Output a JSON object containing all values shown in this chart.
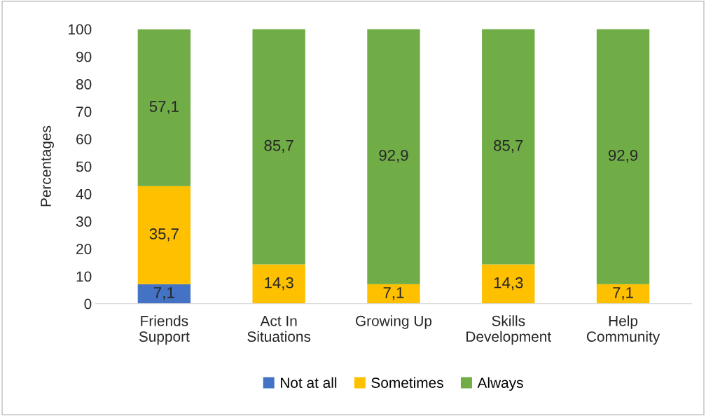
{
  "chart_data": {
    "type": "bar",
    "stacked": true,
    "ylabel": "Percentages",
    "categories": [
      "Friends\nSupport",
      "Act In\nSituations",
      "Growing Up",
      "Skills\nDevelopment",
      "Help\nCommunity"
    ],
    "series": [
      {
        "name": "Not at all",
        "color": "#4472c4",
        "values": [
          7.1,
          null,
          null,
          null,
          null
        ],
        "value_labels": [
          "7,1",
          null,
          null,
          null,
          null
        ]
      },
      {
        "name": "Sometimes",
        "color": "#ffc000",
        "values": [
          35.7,
          14.3,
          7.1,
          14.3,
          7.1
        ],
        "value_labels": [
          "35,7",
          "14,3",
          "7,1",
          "14,3",
          "7,1"
        ]
      },
      {
        "name": "Always",
        "color": "#70ad47",
        "values": [
          57.1,
          85.7,
          92.9,
          85.7,
          92.9
        ],
        "value_labels": [
          "57,1",
          "85,7",
          "92,9",
          "85,7",
          "92,9"
        ]
      }
    ],
    "ylim": [
      0,
      100
    ],
    "yticks": [
      0,
      10,
      20,
      30,
      40,
      50,
      60,
      70,
      80,
      90,
      100
    ],
    "grid": false,
    "legend": "bottom"
  }
}
